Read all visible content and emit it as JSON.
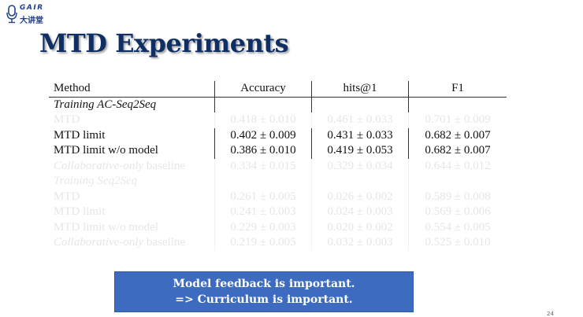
{
  "logo": {
    "brand_en": "GAIR",
    "brand_cn": "大讲堂",
    "icon": "microphone-icon",
    "color": "#1f3f8a"
  },
  "title": "MTD Experiments",
  "table": {
    "headers": [
      "Method",
      "Accuracy",
      "hits@1",
      "F1"
    ],
    "sections": [
      {
        "label": "Training AC-Seq2Seq",
        "rows": [
          {
            "method": "MTD",
            "method_suffix": "",
            "method_italic": false,
            "accuracy": "0.418 ± 0.010",
            "hits1": "0.461 ± 0.033",
            "f1": "0.701 ± 0.009",
            "faded": true
          },
          {
            "method": "MTD limit",
            "method_suffix": "",
            "method_italic": false,
            "accuracy": "0.402 ± 0.009",
            "hits1": "0.431 ± 0.033",
            "f1": "0.682 ± 0.007",
            "faded": false
          },
          {
            "method": "MTD limit w/o model",
            "method_suffix": "",
            "method_italic": false,
            "accuracy": "0.386 ± 0.010",
            "hits1": "0.419 ± 0.053",
            "f1": "0.682 ± 0.007",
            "faded": false
          },
          {
            "method": "Collaborative-only",
            "method_suffix": " baseline",
            "method_italic": true,
            "accuracy": "0.334 ± 0.015",
            "hits1": "0.329 ± 0.034",
            "f1": "0.644 ± 0.012",
            "faded": true
          }
        ]
      },
      {
        "label": "Training Seq2Seq",
        "rows": [
          {
            "method": "MTD",
            "method_suffix": "",
            "method_italic": false,
            "accuracy": "0.261 ± 0.005",
            "hits1": "0.026 ± 0.002",
            "f1": "0.589 ± 0.008",
            "faded": true
          },
          {
            "method": "MTD limit",
            "method_suffix": "",
            "method_italic": false,
            "accuracy": "0.241 ± 0.003",
            "hits1": "0.024 ± 0.003",
            "f1": "0.569 ± 0.006",
            "faded": true
          },
          {
            "method": "MTD limit w/o model",
            "method_suffix": "",
            "method_italic": false,
            "accuracy": "0.229 ± 0.003",
            "hits1": "0.020 ± 0.002",
            "f1": "0.554 ± 0.005",
            "faded": true
          },
          {
            "method": "Collaborative-only",
            "method_suffix": " baseline",
            "method_italic": true,
            "accuracy": "0.219 ± 0.005",
            "hits1": "0.032 ± 0.003",
            "f1": "0.525 ± 0.010",
            "faded": true
          }
        ]
      }
    ]
  },
  "callout": {
    "line1": "Model feedback is important.",
    "line2": "=> Curriculum is important.",
    "background": "#3d6bbf"
  },
  "page_number": "24"
}
